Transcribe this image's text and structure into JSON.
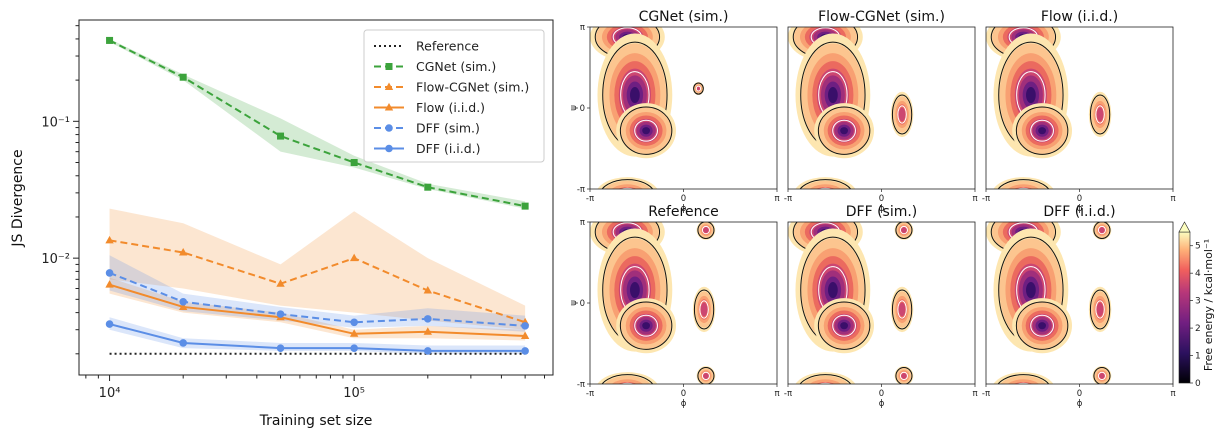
{
  "chart_data": [
    {
      "type": "line",
      "xlabel": "Training set size",
      "ylabel": "JS Divergence",
      "xscale": "log",
      "yscale": "log",
      "xlim": [
        7500,
        650000
      ],
      "ylim": [
        0.0014,
        0.55
      ],
      "x": [
        10000,
        20000,
        50000,
        100000,
        200000,
        500000
      ],
      "xticks": [
        {
          "value": 10000,
          "label": "10⁴"
        },
        {
          "value": 100000,
          "label": "10⁵"
        }
      ],
      "yticks": [
        {
          "value": 0.01,
          "label": "10⁻²"
        },
        {
          "value": 0.1,
          "label": "10⁻¹"
        }
      ],
      "legend_position": "top-right",
      "grid": false,
      "series": [
        {
          "name": "Reference",
          "color": "#222222",
          "style": "dotted",
          "marker": "none",
          "values": [
            0.002,
            0.002,
            0.002,
            0.002,
            0.002,
            0.002
          ]
        },
        {
          "name": "CGNet (sim.)",
          "color": "#3ca33c",
          "style": "dashed",
          "marker": "square",
          "values": [
            0.39,
            0.21,
            0.078,
            0.05,
            0.033,
            0.024
          ],
          "band_low": [
            0.38,
            0.2,
            0.06,
            0.046,
            0.032,
            0.023
          ],
          "band_high": [
            0.4,
            0.22,
            0.105,
            0.056,
            0.035,
            0.026
          ]
        },
        {
          "name": "Flow-CGNet (sim.)",
          "color": "#f28b2c",
          "style": "dashed",
          "marker": "triangle",
          "values": [
            0.0135,
            0.011,
            0.0065,
            0.01,
            0.0058,
            0.0034
          ],
          "band_low": [
            0.007,
            0.006,
            0.0045,
            0.004,
            0.0035,
            0.003
          ],
          "band_high": [
            0.023,
            0.018,
            0.009,
            0.022,
            0.01,
            0.0045
          ]
        },
        {
          "name": "Flow (i.i.d.)",
          "color": "#f28b2c",
          "style": "solid",
          "marker": "triangle",
          "values": [
            0.0064,
            0.0044,
            0.0037,
            0.0028,
            0.0029,
            0.0027
          ],
          "band_low": [
            0.0055,
            0.004,
            0.0034,
            0.0026,
            0.0026,
            0.0025
          ],
          "band_high": [
            0.0072,
            0.0048,
            0.004,
            0.003,
            0.0032,
            0.003
          ]
        },
        {
          "name": "DFF (sim.)",
          "color": "#5b8ee6",
          "style": "dashed",
          "marker": "circle",
          "values": [
            0.0078,
            0.0048,
            0.0039,
            0.0034,
            0.0036,
            0.0032
          ],
          "band_low": [
            0.0058,
            0.0041,
            0.0035,
            0.0031,
            0.0032,
            0.0029
          ],
          "band_high": [
            0.0105,
            0.0055,
            0.0044,
            0.0038,
            0.0043,
            0.0038
          ]
        },
        {
          "name": "DFF (i.i.d.)",
          "color": "#5b8ee6",
          "style": "solid",
          "marker": "circle",
          "values": [
            0.0033,
            0.0024,
            0.0022,
            0.0022,
            0.0021,
            0.0021
          ],
          "band_low": [
            0.003,
            0.0022,
            0.0021,
            0.0021,
            0.002,
            0.002
          ],
          "band_high": [
            0.0037,
            0.0026,
            0.0024,
            0.0024,
            0.0023,
            0.0023
          ]
        }
      ]
    },
    {
      "type": "heatmap",
      "xlabel": "ϕ",
      "ylabel": "ψ",
      "xticks": [
        "-π",
        "0",
        "π"
      ],
      "yticks": [
        "-π",
        "0",
        "π"
      ],
      "panels": [
        {
          "title": "CGNet (sim.)",
          "peaks": [
            "upper-left",
            "center-left"
          ]
        },
        {
          "title": "Flow-CGNet (sim.)",
          "peaks": [
            "upper-left",
            "center-left",
            "right"
          ]
        },
        {
          "title": "Flow (i.i.d.)",
          "peaks": [
            "upper-left",
            "center-left",
            "right"
          ]
        },
        {
          "title": "Reference",
          "peaks": [
            "upper-left",
            "center-left",
            "right"
          ]
        },
        {
          "title": "DFF (sim.)",
          "peaks": [
            "upper-left",
            "center-left",
            "right"
          ]
        },
        {
          "title": "DFF (i.i.d.)",
          "peaks": [
            "upper-left",
            "center-left",
            "right"
          ]
        }
      ],
      "colorbar": {
        "label": "Free energy / kcal·mol⁻¹",
        "range": [
          0,
          5.5
        ],
        "ticks": [
          "0",
          "1",
          "2",
          "3",
          "4",
          "5"
        ],
        "colormap": "magma"
      }
    }
  ]
}
